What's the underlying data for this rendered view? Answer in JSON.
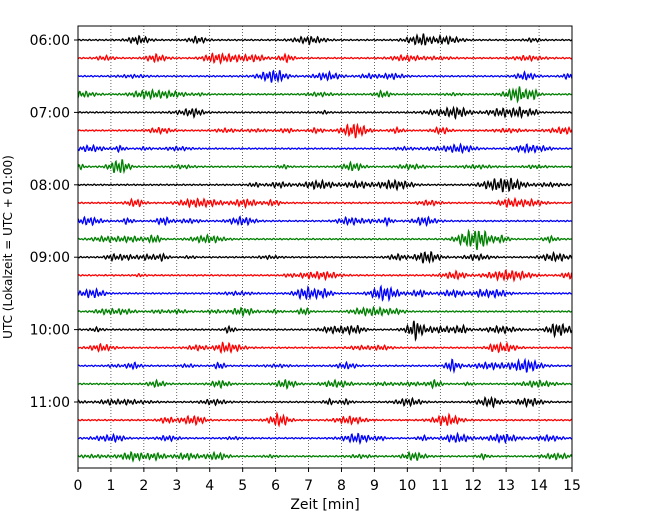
{
  "chart_data": {
    "type": "line",
    "title": "",
    "xlabel": "Zeit  [min]",
    "ylabel": "UTC (Lokalzeit = UTC + 01:00)",
    "xlim": [
      0,
      15
    ],
    "xticks": [
      "0",
      "1",
      "2",
      "3",
      "4",
      "5",
      "6",
      "7",
      "8",
      "9",
      "10",
      "11",
      "12",
      "13",
      "14",
      "15"
    ],
    "yticks": [
      {
        "time": "06:00",
        "row": 0
      },
      {
        "time": "07:00",
        "row": 4
      },
      {
        "time": "08:00",
        "row": 8
      },
      {
        "time": "09:00",
        "row": 12
      },
      {
        "time": "10:00",
        "row": 16
      },
      {
        "time": "11:00",
        "row": 20
      }
    ],
    "grid": "vertical dotted",
    "trace_colors": [
      "#000000",
      "#ff0000",
      "#0000ff",
      "#008000"
    ],
    "row_start_times": [
      "06:00",
      "06:15",
      "06:30",
      "06:45",
      "07:00",
      "07:15",
      "07:30",
      "07:45",
      "08:00",
      "08:15",
      "08:30",
      "08:45",
      "09:00",
      "09:15",
      "09:30",
      "09:45",
      "10:00",
      "10:15",
      "10:30",
      "10:45",
      "11:00",
      "11:15",
      "11:30",
      "11:45"
    ]
  }
}
